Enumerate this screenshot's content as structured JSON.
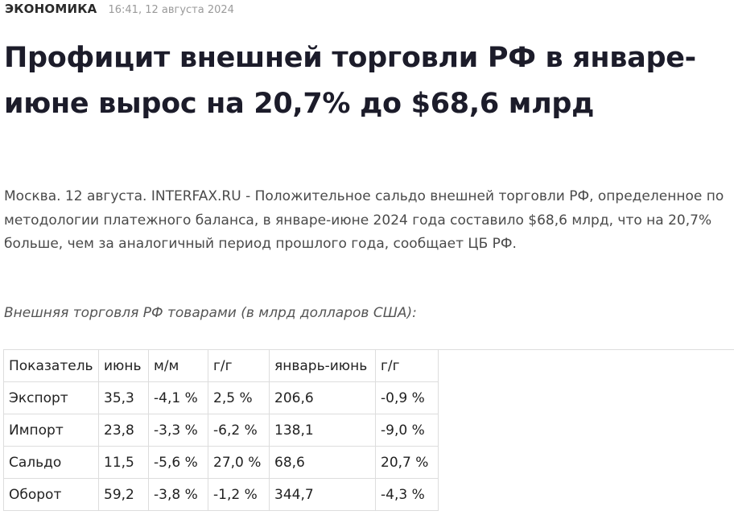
{
  "article": {
    "category": "ЭКОНОМИКА",
    "timestamp": "16:41, 12 августа 2024",
    "headline": "Профицит внешней торговли РФ в январе-июне вырос на 20,7% до $68,6 млрд",
    "lead": "Москва. 12 августа. INTERFAX.RU - Положительное сальдо внешней торговли РФ, определенное по методологии платежного баланса, в январе-июне 2024 года составило $68,6 млрд, что на 20,7% больше, чем за аналогичный период прошлого года, сообщает ЦБ РФ.",
    "table_caption": "Внешняя торговля РФ товарами (в млрд долларов США):"
  },
  "table": {
    "headers": [
      "Показатель",
      "июнь",
      "м/м",
      "г/г",
      "январь-июнь",
      "г/г"
    ],
    "rows": [
      [
        "Экспорт",
        "35,3",
        "-4,1 %",
        "2,5 %",
        "206,6",
        "-0,9 %"
      ],
      [
        "Импорт",
        "23,8",
        "-3,3 %",
        "-6,2 %",
        "138,1",
        "-9,0 %"
      ],
      [
        "Сальдо",
        "11,5",
        "-5,6 %",
        "27,0 %",
        "68,6",
        "20,7 %"
      ],
      [
        "Оборот",
        "59,2",
        "-3,8 %",
        "-1,2 %",
        "344,7",
        "-4,3 %"
      ]
    ]
  }
}
